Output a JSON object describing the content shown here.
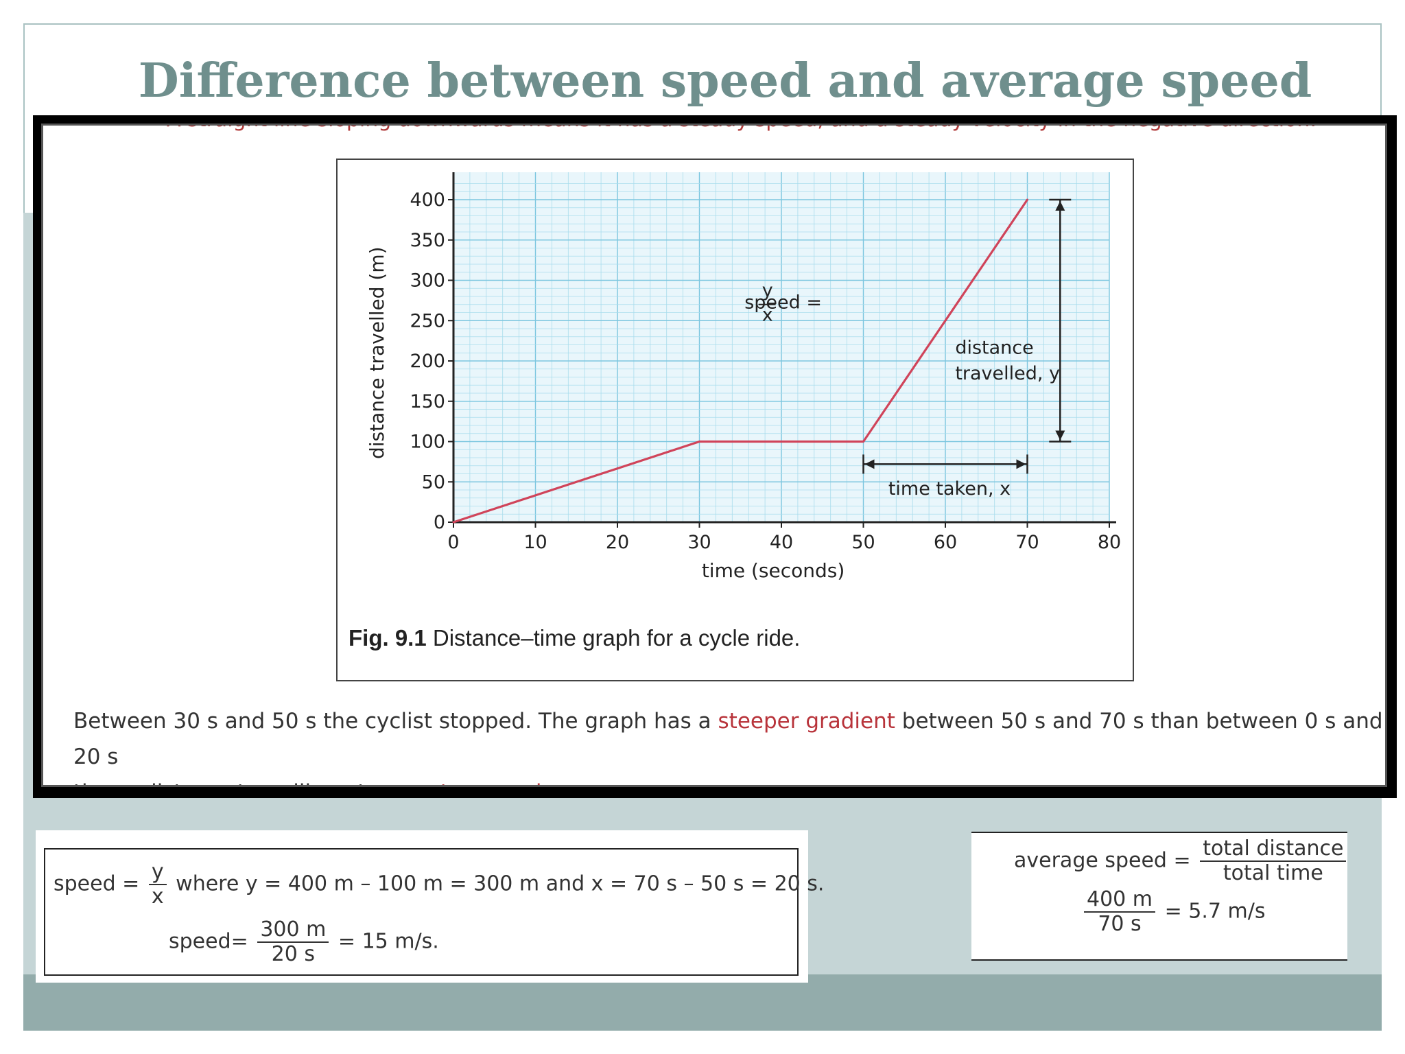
{
  "slide": {
    "title": "Difference between speed and average speed"
  },
  "screenshot": {
    "cut_off_line": "A straight line sloping downwards means it has a steady speed, and a steady velocity in the negative direction.",
    "paragraph": {
      "part1": "Between 30 s and 50 s the cyclist stopped. The graph has a ",
      "highlight1": "steeper gradient",
      "part2": " between 50 s and 70 s than between 0 s and 20 s",
      "part3": "the cyclist was travelling at a ",
      "highlight2": "greater speed",
      "part4": "."
    }
  },
  "figure": {
    "caption_bold": "Fig. 9.1",
    "caption_text": " Distance–time graph for a cycle ride.",
    "annotations": {
      "speed_label": "speed =",
      "speed_num": "y",
      "speed_den": "x",
      "distance_line1": "distance",
      "distance_line2": "travelled, y",
      "time_taken": "time taken, x"
    }
  },
  "chart_data": {
    "type": "line",
    "title": "",
    "xlabel": "time (seconds)",
    "ylabel": "distance travelled (m)",
    "xlim": [
      0,
      80
    ],
    "ylim": [
      0,
      400
    ],
    "xticks": [
      0,
      10,
      20,
      30,
      40,
      50,
      60,
      70,
      80
    ],
    "yticks": [
      0,
      50,
      100,
      150,
      200,
      250,
      300,
      350,
      400
    ],
    "grid": true,
    "series": [
      {
        "x": [
          0,
          30,
          50,
          70
        ],
        "y": [
          0,
          100,
          100,
          400
        ],
        "color": "#d0445a"
      }
    ]
  },
  "equations": {
    "left": {
      "speed_prefix": "speed =",
      "num": "y",
      "den": "x",
      "where_text": "where y = 400 m – 100 m = 300 m and x = 70 s – 50 s = 20 s.",
      "speed2_prefix": "speed=",
      "num2": "300 m",
      "den2": "20 s",
      "result": "= 15 m/s."
    },
    "right": {
      "avg_prefix": "average speed =",
      "num": "total distance",
      "den": "total time",
      "num2": "400 m",
      "den2": "70 s",
      "result": "= 5.7 m/s"
    }
  },
  "colors": {
    "title": "#6f8f8d",
    "line": "#d0445a",
    "highlight": "#b8333a",
    "band": "#c5d5d6",
    "footer": "#93acab"
  }
}
